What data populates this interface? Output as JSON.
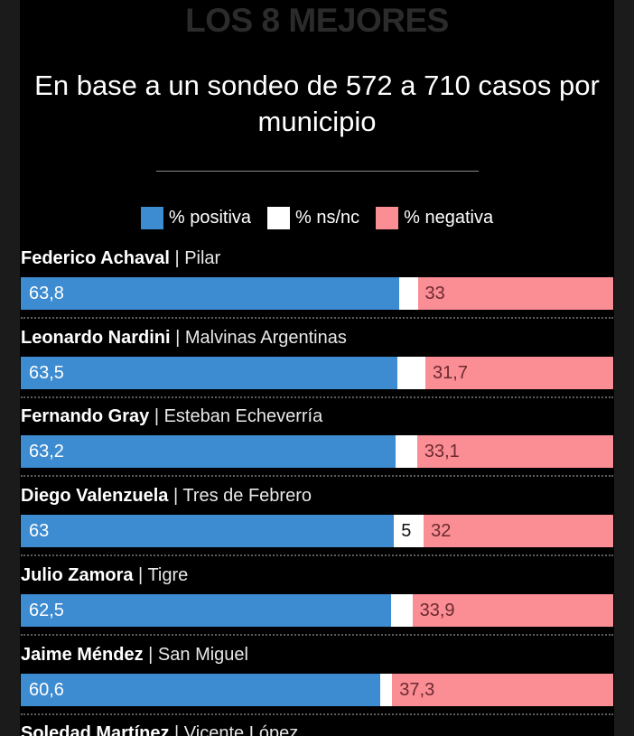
{
  "header": {
    "title": "LOS 8 MEJORES",
    "subtitle": "En base a un sondeo de 572 a 710 casos por municipio"
  },
  "legend": [
    {
      "label": "% positiva",
      "color": "#3d8bd0"
    },
    {
      "label": "% ns/nc",
      "color": "#ffffff"
    },
    {
      "label": "% negativa",
      "color": "#fb8d95"
    }
  ],
  "chart_data": {
    "type": "bar",
    "orientation": "horizontal",
    "stacked": true,
    "percent_scale": [
      0,
      100
    ],
    "title": "LOS 8 MEJORES",
    "subtitle": "En base a un sondeo de 572 a 710 casos por municipio",
    "categories": [
      {
        "name": "Federico Achaval",
        "municipio": "Pilar"
      },
      {
        "name": "Leonardo Nardini",
        "municipio": "Malvinas Argentinas"
      },
      {
        "name": "Fernando Gray",
        "municipio": "Esteban Echeverría"
      },
      {
        "name": "Diego Valenzuela",
        "municipio": "Tres de Febrero"
      },
      {
        "name": "Julio Zamora",
        "municipio": "Tigre"
      },
      {
        "name": "Jaime Méndez",
        "municipio": "San Miguel"
      },
      {
        "name": "Soledad Martínez",
        "municipio": "Vicente López"
      }
    ],
    "series": [
      {
        "name": "% positiva",
        "color": "#3d8bd0",
        "values": [
          63.8,
          63.5,
          63.2,
          63,
          62.5,
          60.6,
          null
        ],
        "labels": [
          "63,8",
          "63,5",
          "63,2",
          "63",
          "62,5",
          "60,6",
          ""
        ]
      },
      {
        "name": "% ns/nc",
        "color": "#ffffff",
        "values": [
          3.2,
          4.8,
          3.7,
          5,
          3.6,
          2.1,
          null
        ],
        "labels": [
          "",
          "",
          "",
          "5",
          "",
          "",
          ""
        ]
      },
      {
        "name": "% negativa",
        "color": "#fb8d95",
        "values": [
          33,
          31.7,
          33.1,
          32,
          33.9,
          37.3,
          null
        ],
        "labels": [
          "33",
          "31,7",
          "33,1",
          "32",
          "33,9",
          "37,3",
          ""
        ]
      }
    ],
    "separator": " | "
  }
}
